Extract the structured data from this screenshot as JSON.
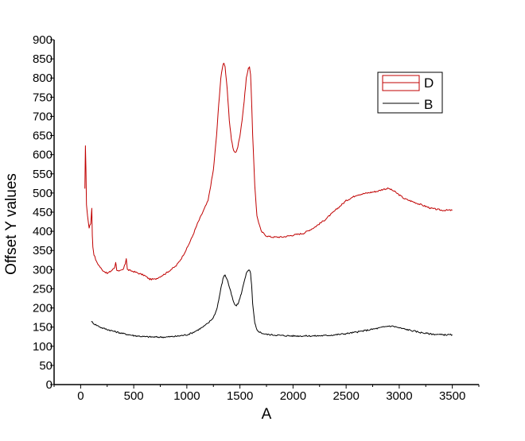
{
  "chart_data": {
    "type": "line",
    "title": "",
    "xlabel": "A",
    "ylabel": "Offset Y values",
    "xlim": [
      -250,
      3750
    ],
    "ylim": [
      0,
      900
    ],
    "xticks": [
      0,
      500,
      1000,
      1500,
      2000,
      2500,
      3000,
      3500
    ],
    "yticks": [
      0,
      50,
      100,
      150,
      200,
      250,
      300,
      350,
      400,
      450,
      500,
      550,
      600,
      650,
      700,
      750,
      800,
      850,
      900
    ],
    "grid": false,
    "legend_position": "top-right",
    "series": [
      {
        "name": "D",
        "color": "#c00000",
        "x": [
          40,
          45,
          50,
          55,
          65,
          80,
          95,
          105,
          110,
          115,
          125,
          150,
          200,
          250,
          280,
          300,
          320,
          330,
          340,
          360,
          400,
          420,
          430,
          440,
          460,
          500,
          550,
          600,
          650,
          700,
          750,
          800,
          850,
          900,
          950,
          1000,
          1050,
          1100,
          1150,
          1200,
          1250,
          1280,
          1300,
          1320,
          1340,
          1350,
          1360,
          1380,
          1400,
          1420,
          1440,
          1460,
          1480,
          1500,
          1520,
          1540,
          1560,
          1580,
          1590,
          1600,
          1610,
          1620,
          1640,
          1660,
          1700,
          1750,
          1800,
          1900,
          2000,
          2100,
          2200,
          2300,
          2400,
          2500,
          2600,
          2700,
          2800,
          2850,
          2900,
          2950,
          3000,
          3050,
          3100,
          3200,
          3300,
          3400,
          3500
        ],
        "y": [
          510,
          625,
          560,
          470,
          440,
          410,
          420,
          460,
          390,
          360,
          340,
          320,
          300,
          290,
          295,
          300,
          305,
          320,
          300,
          295,
          300,
          315,
          330,
          300,
          298,
          295,
          290,
          285,
          275,
          275,
          282,
          290,
          300,
          310,
          330,
          355,
          385,
          420,
          450,
          480,
          560,
          650,
          730,
          800,
          835,
          840,
          830,
          770,
          690,
          640,
          610,
          605,
          620,
          650,
          690,
          740,
          800,
          825,
          830,
          810,
          740,
          650,
          520,
          440,
          400,
          388,
          385,
          385,
          390,
          395,
          410,
          430,
          455,
          480,
          495,
          500,
          505,
          510,
          512,
          505,
          495,
          485,
          480,
          470,
          460,
          455,
          455
        ]
      },
      {
        "name": "B",
        "color": "#000000",
        "x": [
          100,
          120,
          150,
          200,
          300,
          400,
          500,
          600,
          700,
          800,
          900,
          1000,
          1050,
          1100,
          1150,
          1200,
          1250,
          1280,
          1300,
          1320,
          1340,
          1350,
          1360,
          1380,
          1400,
          1420,
          1440,
          1460,
          1480,
          1500,
          1520,
          1540,
          1560,
          1580,
          1590,
          1600,
          1610,
          1620,
          1640,
          1660,
          1700,
          1750,
          1800,
          1900,
          2000,
          2100,
          2200,
          2300,
          2400,
          2500,
          2600,
          2700,
          2800,
          2850,
          2900,
          2950,
          3000,
          3100,
          3200,
          3300,
          3400,
          3500
        ],
        "y": [
          165,
          160,
          155,
          148,
          140,
          133,
          128,
          125,
          124,
          124,
          126,
          130,
          135,
          142,
          150,
          160,
          175,
          195,
          220,
          250,
          275,
          285,
          285,
          275,
          255,
          235,
          215,
          205,
          210,
          225,
          245,
          270,
          290,
          298,
          298,
          290,
          260,
          210,
          160,
          142,
          135,
          131,
          130,
          128,
          127,
          127,
          127,
          128,
          130,
          133,
          137,
          142,
          147,
          150,
          153,
          152,
          148,
          142,
          136,
          132,
          130,
          130
        ]
      }
    ]
  }
}
